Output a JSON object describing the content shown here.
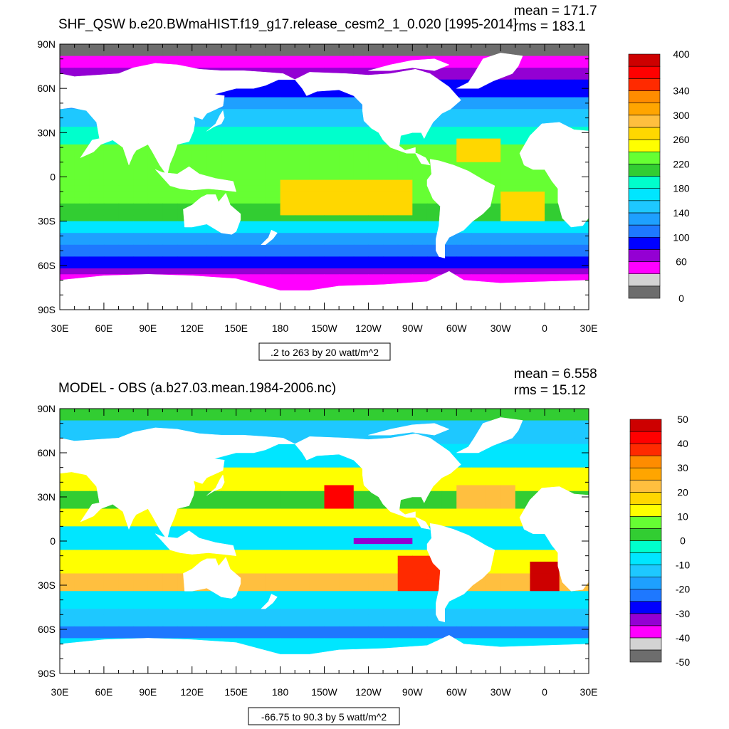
{
  "chart_data": [
    {
      "type": "heatmap",
      "title": "SHF_QSW b.e20.BWmaHIST.f19_g17.release_cesm2_1_0.020 [1995-2014]",
      "stats": {
        "mean": "mean = 171.7",
        "rms": "rms = 183.1"
      },
      "contour_info": ".2 to 263 by 20 watt/m^2",
      "x_ticks": [
        "30E",
        "60E",
        "90E",
        "120E",
        "150E",
        "180",
        "150W",
        "120W",
        "90W",
        "60W",
        "30W",
        "0",
        "30E"
      ],
      "y_ticks": [
        "90N",
        "60N",
        "30N",
        "0",
        "30S",
        "60S",
        "90S"
      ],
      "colorbar": {
        "colors": [
          "#6d6d6d",
          "#d3d3d3",
          "#ff00ff",
          "#9400d3",
          "#0000ff",
          "#1e78ff",
          "#1ea0ff",
          "#1ec8ff",
          "#00e6ff",
          "#00ffcc",
          "#32cd32",
          "#66ff33",
          "#ffff00",
          "#ffd700",
          "#ffbf3f",
          "#ffa500",
          "#ff8c00",
          "#ff2a00",
          "#ff0000",
          "#cd0000"
        ],
        "labels": [
          {
            "text": "0",
            "pos": 0.0
          },
          {
            "text": "60",
            "pos": 0.15
          },
          {
            "text": "100",
            "pos": 0.25
          },
          {
            "text": "140",
            "pos": 0.35
          },
          {
            "text": "180",
            "pos": 0.45
          },
          {
            "text": "220",
            "pos": 0.55
          },
          {
            "text": "260",
            "pos": 0.65
          },
          {
            "text": "300",
            "pos": 0.75
          },
          {
            "text": "340",
            "pos": 0.85
          },
          {
            "text": "400",
            "pos": 1.0
          }
        ]
      },
      "field": "absolute"
    },
    {
      "type": "heatmap",
      "title": "MODEL - OBS (a.b27.03.mean.1984-2006.nc)",
      "stats": {
        "mean": "mean = 6.558",
        "rms": "rms = 15.12"
      },
      "contour_info": "-66.75 to 90.3 by 5 watt/m^2",
      "x_ticks": [
        "30E",
        "60E",
        "90E",
        "120E",
        "150E",
        "180",
        "150W",
        "120W",
        "90W",
        "60W",
        "30W",
        "0",
        "30E"
      ],
      "y_ticks": [
        "90N",
        "60N",
        "30N",
        "0",
        "30S",
        "60S",
        "90S"
      ],
      "colorbar": {
        "colors": [
          "#6d6d6d",
          "#d3d3d3",
          "#ff00ff",
          "#9400d3",
          "#0000ff",
          "#1e78ff",
          "#1ea0ff",
          "#1ec8ff",
          "#00e6ff",
          "#00ffcc",
          "#32cd32",
          "#66ff33",
          "#ffff00",
          "#ffd700",
          "#ffbf3f",
          "#ffa500",
          "#ff8c00",
          "#ff2a00",
          "#ff0000",
          "#cd0000"
        ],
        "labels": [
          {
            "text": "-50",
            "pos": 0.0
          },
          {
            "text": "-40",
            "pos": 0.1
          },
          {
            "text": "-30",
            "pos": 0.2
          },
          {
            "text": "-20",
            "pos": 0.3
          },
          {
            "text": "-10",
            "pos": 0.4
          },
          {
            "text": "0",
            "pos": 0.5
          },
          {
            "text": "10",
            "pos": 0.6
          },
          {
            "text": "20",
            "pos": 0.7
          },
          {
            "text": "30",
            "pos": 0.8
          },
          {
            "text": "40",
            "pos": 0.9
          },
          {
            "text": "50",
            "pos": 1.0
          }
        ]
      },
      "field": "difference"
    }
  ]
}
